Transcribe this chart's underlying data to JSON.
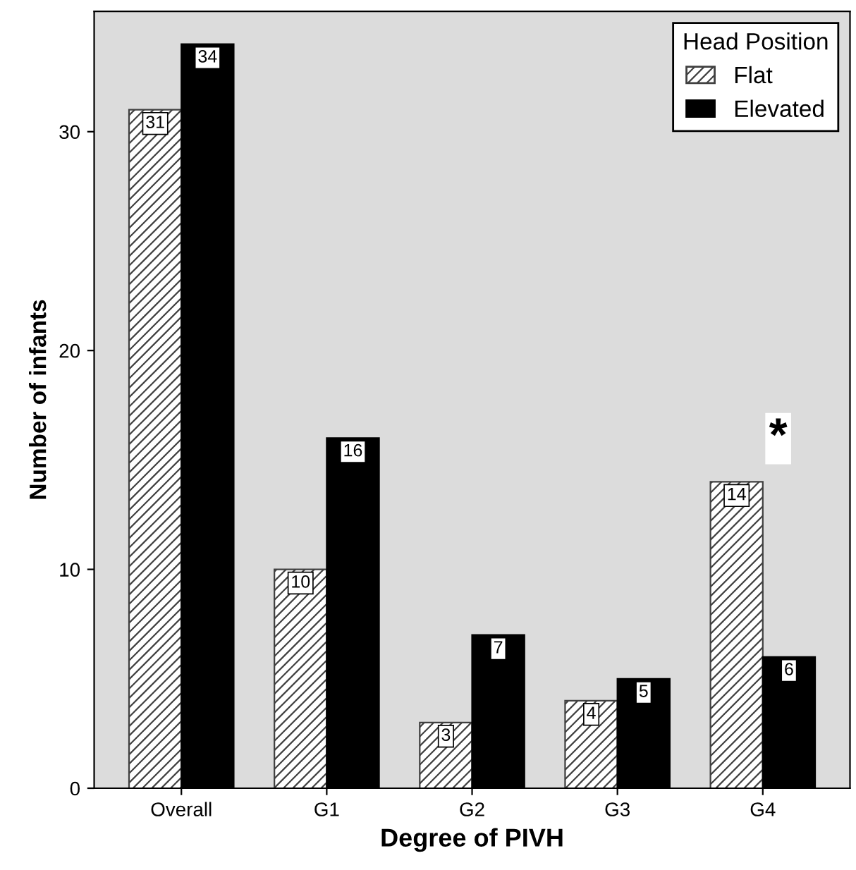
{
  "chart_data": {
    "type": "bar",
    "xlabel": "Degree of PIVH",
    "ylabel": "Number of infants",
    "legend_title": "Head Position",
    "categories": [
      "Overall",
      "G1",
      "G2",
      "G3",
      "G4"
    ],
    "series": [
      {
        "name": "Flat",
        "color": "#404040",
        "values": [
          31,
          10,
          3,
          4,
          14
        ]
      },
      {
        "name": "Elevated",
        "color": "#000000",
        "values": [
          34,
          16,
          7,
          5,
          6
        ]
      }
    ],
    "ylim": [
      0,
      35.5
    ],
    "yticks": [
      0,
      10,
      20,
      30
    ],
    "data_labels": true,
    "grid": false,
    "legend": "top right",
    "annotations": [
      "*"
    ]
  }
}
